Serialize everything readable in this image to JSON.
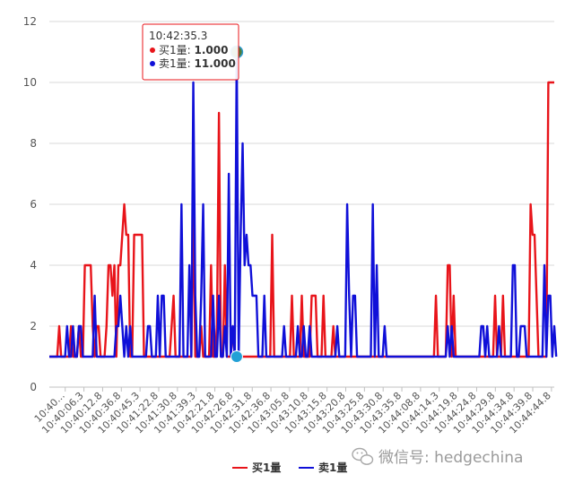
{
  "chart_data": {
    "type": "line",
    "ylim": [
      0,
      12
    ],
    "yticks": [
      0,
      2,
      4,
      6,
      8,
      10,
      12
    ],
    "grid": true,
    "legend": "bottom",
    "xtick_labels": [
      "10:40...",
      "10:40:06.3",
      "10:40:12.8",
      "10:40:36.8",
      "10:40:45.3",
      "10:41:22.8",
      "10:41:30.8",
      "10:41:39.3",
      "10:42:21.8",
      "10:42:26.8",
      "10:42:31.8",
      "10:42:36.8",
      "10:43:05.8",
      "10:43:10.8",
      "10:43:15.8",
      "10:43:20.8",
      "10:43:25.8",
      "10:43:30.8",
      "10:43:35.8",
      "10:44:08.8",
      "10:44:14.3",
      "10:44:19.8",
      "10:44:24.8",
      "10:44:29.8",
      "10:44:34.8",
      "10:44:39.8",
      "10:44:44.8"
    ],
    "series": [
      {
        "name": "买1量",
        "color": "#e8141a",
        "values": [
          1,
          1,
          1,
          1,
          1,
          2,
          1,
          1,
          1,
          1,
          1,
          2,
          1,
          1,
          1,
          2,
          1,
          1,
          4,
          4,
          4,
          4,
          2,
          1,
          2,
          2,
          1,
          1,
          1,
          2,
          4,
          4,
          3,
          4,
          1,
          4,
          4,
          5,
          6,
          5,
          5,
          1,
          1,
          5,
          5,
          5,
          5,
          5,
          1,
          1,
          1,
          1,
          1,
          1,
          1,
          1,
          1,
          1,
          1,
          1,
          1,
          1,
          2,
          3,
          1,
          1,
          1,
          1,
          1,
          1,
          1,
          1,
          1,
          6,
          1,
          1,
          1,
          2,
          1,
          1,
          1,
          1,
          4,
          1,
          1,
          2,
          9,
          1,
          1,
          4,
          1,
          1,
          1,
          2,
          1,
          1,
          1,
          1,
          1,
          1,
          1,
          1,
          1,
          1,
          1,
          1,
          1,
          1,
          1,
          1,
          1,
          1,
          1,
          5,
          1,
          1,
          1,
          1,
          1,
          1,
          1,
          1,
          1,
          3,
          1,
          1,
          1,
          1,
          3,
          1,
          1,
          1,
          1,
          3,
          3,
          3,
          1,
          1,
          1,
          3,
          1,
          1,
          1,
          1,
          2,
          1,
          1,
          1,
          1,
          1,
          1,
          1,
          1,
          1,
          1,
          1,
          1,
          1,
          1,
          1,
          1,
          1,
          1,
          1,
          1,
          1,
          1,
          1,
          1,
          1,
          1,
          1,
          1,
          1,
          1,
          1,
          1,
          1,
          1,
          1,
          1,
          1,
          1,
          1,
          1,
          1,
          1,
          1,
          1,
          1,
          1,
          1,
          1,
          1,
          1,
          1,
          3,
          1,
          1,
          1,
          1,
          1,
          4,
          4,
          1,
          3,
          1,
          1,
          1,
          1,
          1,
          1,
          1,
          1,
          1,
          1,
          1,
          1,
          1,
          1,
          1,
          1,
          1,
          1,
          1,
          1,
          3,
          1,
          1,
          1,
          3,
          1,
          1,
          1,
          1,
          1,
          1,
          1,
          1,
          1,
          1,
          1,
          1,
          1,
          6,
          5,
          5,
          3,
          1,
          1,
          1,
          1,
          1,
          10,
          10,
          10,
          10
        ]
      },
      {
        "name": "卖1量",
        "color": "#1010d8",
        "values": [
          1,
          1,
          1,
          1,
          1,
          1,
          1,
          1,
          1,
          2,
          1,
          1,
          2,
          1,
          1,
          2,
          2,
          1,
          1,
          1,
          1,
          1,
          1,
          3,
          1,
          1,
          1,
          1,
          1,
          1,
          1,
          1,
          1,
          1,
          2,
          2,
          3,
          2,
          1,
          2,
          1,
          2,
          1,
          1,
          1,
          1,
          1,
          1,
          1,
          1,
          2,
          2,
          1,
          1,
          1,
          3,
          1,
          3,
          3,
          1,
          1,
          1,
          1,
          1,
          1,
          1,
          1,
          6,
          1,
          1,
          1,
          4,
          1,
          10,
          3,
          1,
          1,
          3,
          6,
          1,
          1,
          1,
          1,
          3,
          1,
          1,
          3,
          1,
          1,
          2,
          1,
          7,
          1,
          2,
          1,
          11,
          1,
          5,
          8,
          4,
          5,
          4,
          4,
          3,
          3,
          3,
          1,
          1,
          1,
          3,
          1,
          1,
          1,
          1,
          1,
          1,
          1,
          1,
          1,
          2,
          1,
          1,
          1,
          1,
          1,
          1,
          2,
          1,
          1,
          2,
          1,
          1,
          2,
          1,
          1,
          1,
          1,
          1,
          1,
          1,
          1,
          1,
          1,
          1,
          1,
          1,
          2,
          1,
          1,
          1,
          1,
          6,
          3,
          1,
          3,
          3,
          1,
          1,
          1,
          1,
          1,
          1,
          1,
          1,
          6,
          1,
          4,
          1,
          1,
          1,
          2,
          1,
          1,
          1,
          1,
          1,
          1,
          1,
          1,
          1,
          1,
          1,
          1,
          1,
          1,
          1,
          1,
          1,
          1,
          1,
          1,
          1,
          1,
          1,
          1,
          1,
          1,
          1,
          1,
          1,
          1,
          1,
          2,
          1,
          2,
          1,
          1,
          1,
          1,
          1,
          1,
          1,
          1,
          1,
          1,
          1,
          1,
          1,
          1,
          2,
          2,
          1,
          2,
          1,
          1,
          1,
          1,
          1,
          2,
          1,
          1,
          1,
          1,
          1,
          1,
          4,
          4,
          1,
          1,
          2,
          2,
          2,
          1,
          1,
          1,
          1,
          1,
          1,
          1,
          1,
          1,
          4,
          1,
          3,
          3,
          1,
          2,
          1
        ]
      }
    ],
    "tooltip": {
      "time": "10:42:35.3",
      "buy_label": "买1量: ",
      "buy_value": "1.000",
      "sell_label": "卖1量: ",
      "sell_value": "11.000",
      "index": 95
    }
  },
  "watermark": "微信号: hedgechina"
}
